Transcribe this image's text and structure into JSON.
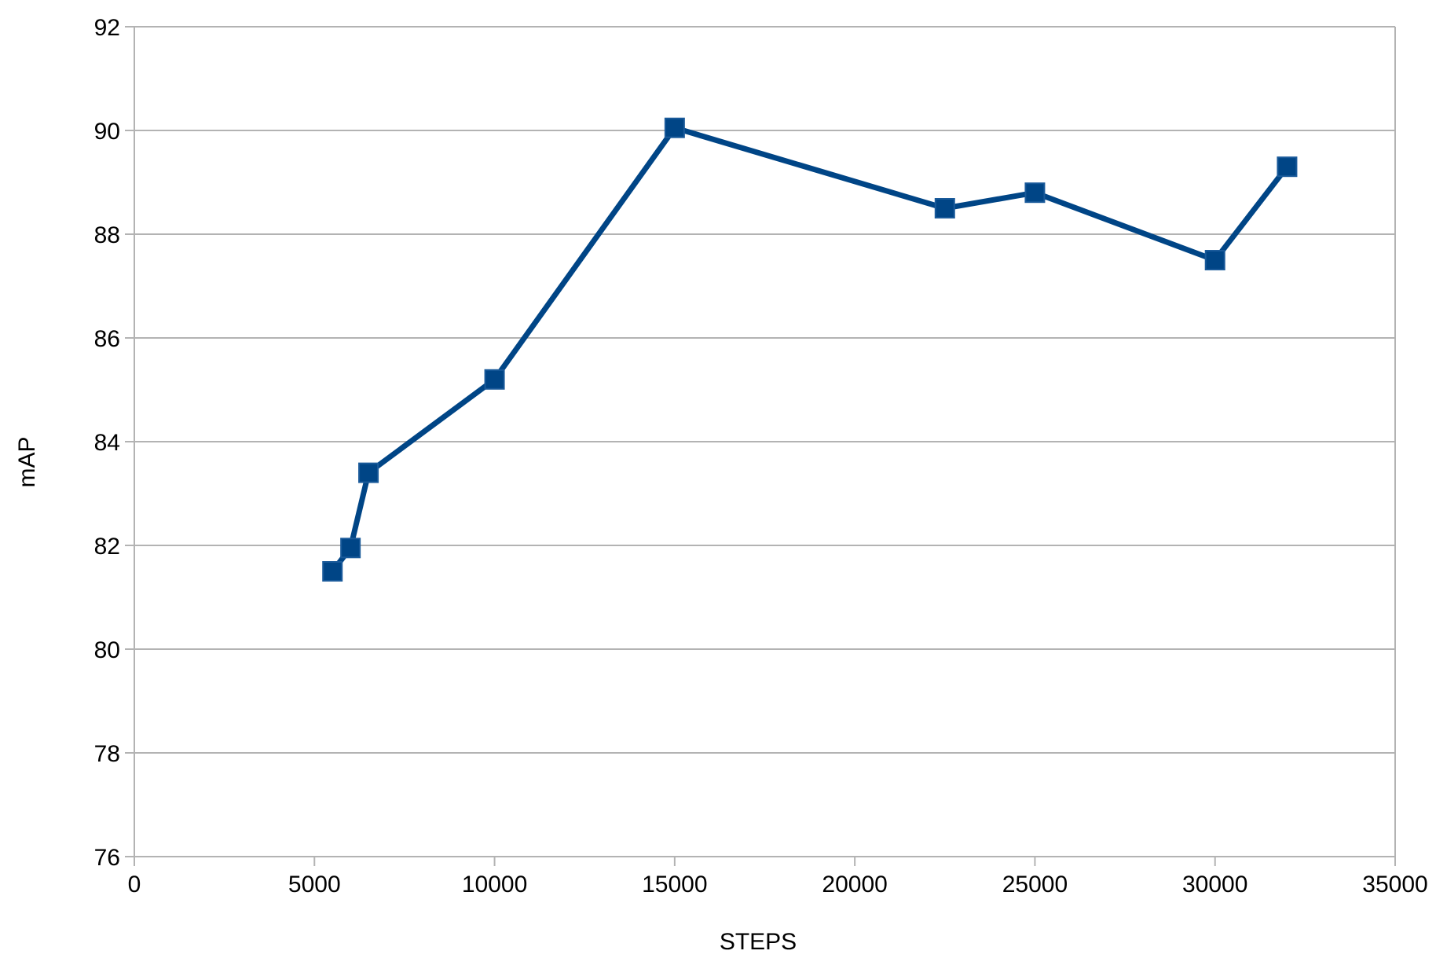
{
  "chart_data": {
    "type": "line",
    "title": "",
    "xlabel": "STEPS",
    "ylabel": "mAP",
    "xlim": [
      0,
      35000
    ],
    "ylim": [
      76,
      92
    ],
    "xticks": [
      0,
      5000,
      10000,
      15000,
      20000,
      25000,
      30000,
      35000
    ],
    "yticks": [
      76,
      78,
      80,
      82,
      84,
      86,
      88,
      90,
      92
    ],
    "grid": "horizontal",
    "legend": "none",
    "series": [
      {
        "color": "#004586",
        "marker": "square",
        "points": [
          {
            "x": 5500,
            "y": 81.5
          },
          {
            "x": 6000,
            "y": 81.95
          },
          {
            "x": 6500,
            "y": 83.4
          },
          {
            "x": 10000,
            "y": 85.2
          },
          {
            "x": 15000,
            "y": 90.05
          },
          {
            "x": 22500,
            "y": 88.5
          },
          {
            "x": 25000,
            "y": 88.8
          },
          {
            "x": 30000,
            "y": 87.5
          },
          {
            "x": 32000,
            "y": 89.3
          }
        ]
      }
    ]
  },
  "colors": {
    "series": "#004586",
    "grid": "#b3b3b3",
    "axis": "#b3b3b3",
    "background": "#ffffff"
  }
}
